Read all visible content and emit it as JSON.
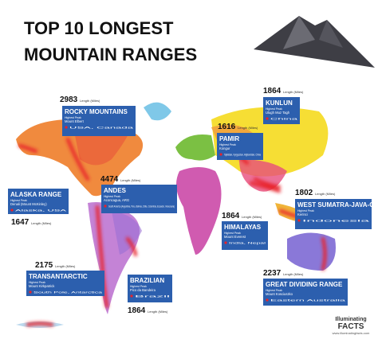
{
  "header": {
    "title_line1": "TOP 10 LONGEST",
    "title_line2": "MOUNTAIN RANGES"
  },
  "ranges": [
    {
      "name": "ROCKY MOUNTAINS",
      "length": 2983,
      "length_unit": "Length (Miles)",
      "peak_label": "Highest Peak",
      "peak": "Mount Elbert",
      "location": "USA, Canada"
    },
    {
      "name": "KUNLUN",
      "length": 1864,
      "length_unit": "Length (Miles)",
      "peak_label": "Highest Peak",
      "peak": "Ulugh Muz Tagh",
      "location": "China"
    },
    {
      "name": "PAMIR",
      "length": 1616,
      "length_unit": "Length (Miles)",
      "peak_label": "Highest Peak",
      "peak": "Kongur",
      "location": "Tajikistan, Kyrgyzstan, Afghanistan, China"
    },
    {
      "name": "ANDES",
      "length": 4474,
      "length_unit": "Length (Miles)",
      "peak_label": "Highest Peak",
      "peak": "Aconcagua, ARG",
      "location": "South America (Argentina, Peru, Bolivia, Chile, Colombia, Ecuador, Venezuela)"
    },
    {
      "name": "ALASKA RANGE",
      "length": 1647,
      "length_unit": "Length (Miles)",
      "peak_label": "Highest Peak",
      "peak": "Denali (Mount McKinley)",
      "location": "Alaska, USA"
    },
    {
      "name": "HIMALAYAS",
      "length": 1864,
      "length_unit": "Length (Miles)",
      "peak_label": "Highest Peak",
      "peak": "Mount Everest",
      "location": "India, Nepal"
    },
    {
      "name": "WEST SUMATRA-JAVA-CHAIN",
      "length": 1802,
      "length_unit": "Length (Miles)",
      "peak_label": "Highest Peak",
      "peak": "Kerinci",
      "location": "Indonesia"
    },
    {
      "name": "TRANSANTARCTIC",
      "length": 2175,
      "length_unit": "Length (Miles)",
      "peak_label": "Highest Peak",
      "peak": "Mount Kirkpatrick",
      "location": "South Pole, Antarctica"
    },
    {
      "name": "BRAZILIAN",
      "length": 1864,
      "length_unit": "Length (Miles)",
      "peak_label": "Highest Peak",
      "peak": "Pico da Bandeira",
      "location": "Brazil"
    },
    {
      "name": "GREAT DIVIDING RANGE",
      "length": 2237,
      "length_unit": "Length (Miles)",
      "peak_label": "Highest Peak",
      "peak": "Mount Kosciuszko",
      "location": "Eastern Australia"
    }
  ],
  "logo": {
    "line1": "Illuminating",
    "line2": "FACTS",
    "url": "www.illuminatingfacts.com"
  }
}
